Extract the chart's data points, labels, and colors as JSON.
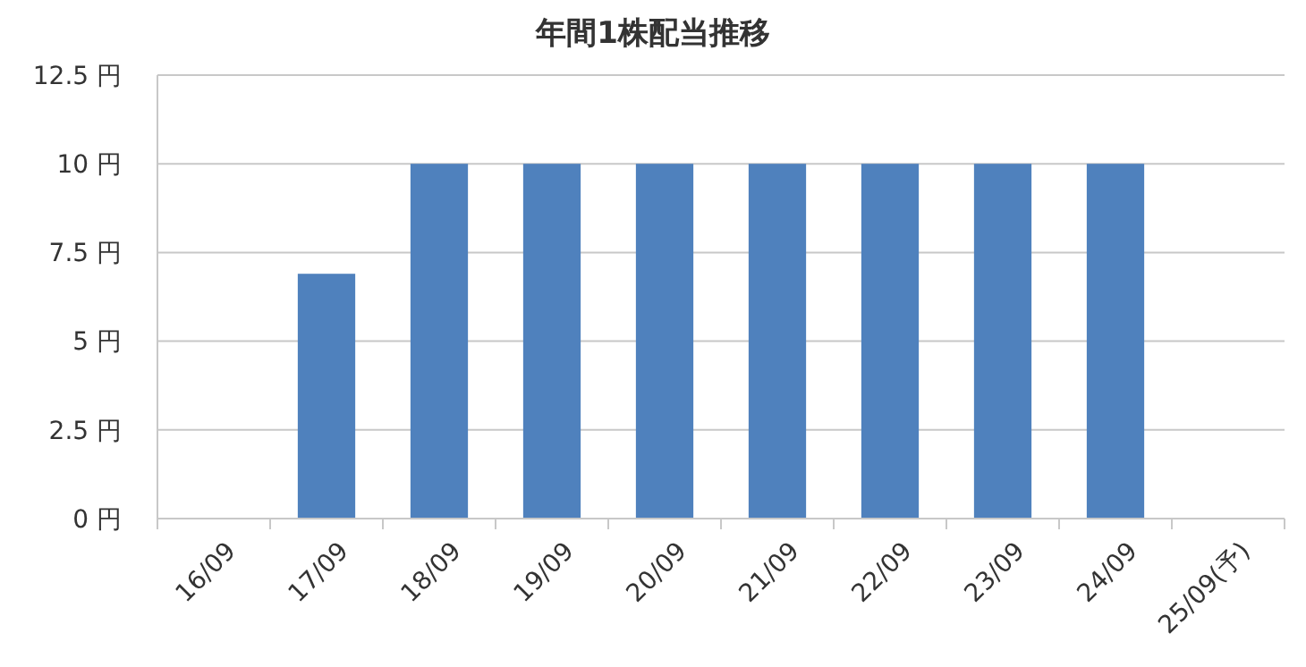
{
  "chart_data": {
    "type": "bar",
    "title": "年間1株配当推移",
    "categories": [
      "16/09",
      "17/09",
      "18/09",
      "19/09",
      "20/09",
      "21/09",
      "22/09",
      "23/09",
      "24/09",
      "25/09(予)"
    ],
    "values": [
      null,
      6.9,
      10,
      10,
      10,
      10,
      10,
      10,
      10,
      null
    ],
    "color": "#4f81bd",
    "ylim": [
      0,
      12.5
    ],
    "yticks": [
      {
        "value": 0,
        "label": "0 円"
      },
      {
        "value": 2.5,
        "label": "2.5 円"
      },
      {
        "value": 5,
        "label": "5 円"
      },
      {
        "value": 7.5,
        "label": "7.5 円"
      },
      {
        "value": 10,
        "label": "10 円"
      },
      {
        "value": 12.5,
        "label": "12.5 円"
      }
    ],
    "grid": "y"
  }
}
